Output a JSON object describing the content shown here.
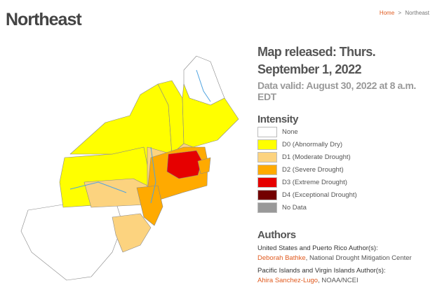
{
  "header": {
    "title": "Northeast"
  },
  "breadcrumb": {
    "items": [
      "Home",
      "Northeast"
    ],
    "separator": ">"
  },
  "map_info": {
    "released": "Map released: Thurs. September 1, 2022",
    "valid": "Data valid: August 30, 2022 at 8 a.m. EDT"
  },
  "legend": {
    "title": "Intensity",
    "items": [
      {
        "label": "None",
        "color": "#ffffff"
      },
      {
        "label": "D0 (Abnormally Dry)",
        "color": "#ffff00"
      },
      {
        "label": "D1 (Moderate Drought)",
        "color": "#fcd37f"
      },
      {
        "label": "D2 (Severe Drought)",
        "color": "#ffaa00"
      },
      {
        "label": "D3 (Extreme Drought)",
        "color": "#e60000"
      },
      {
        "label": "D4 (Exceptional Drought)",
        "color": "#730000"
      },
      {
        "label": "No Data",
        "color": "#999999"
      }
    ]
  },
  "authors": {
    "title": "Authors",
    "groups": [
      {
        "heading": "United States and Puerto Rico Author(s):",
        "name": "Deborah Bathke",
        "affiliation": ", National Drought Mitigation Center"
      },
      {
        "heading": "Pacific Islands and Virgin Islands Author(s):",
        "name": "Ahira Sanchez-Lugo",
        "affiliation": ", NOAA/NCEI"
      }
    ]
  }
}
